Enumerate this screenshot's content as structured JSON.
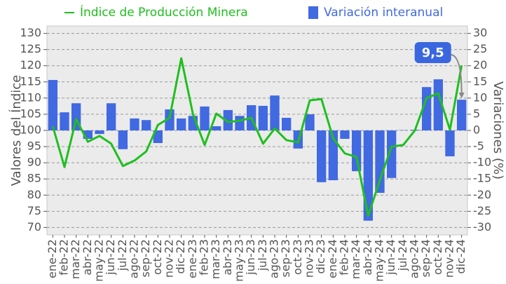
{
  "chart_data": {
    "type": "bar_line",
    "legend": "top",
    "grid": true,
    "ylabel": "Valores del Índice",
    "y2label": "Variaciones (%)",
    "categories": [
      "ene-22",
      "feb-22",
      "mar-22",
      "abr-22",
      "may-22",
      "jun-22",
      "jul-22",
      "ago-22",
      "sep-22",
      "oct-22",
      "nov-22",
      "dic-22",
      "ene-23",
      "feb-23",
      "mar-23",
      "abr-23",
      "may-23",
      "jun-23",
      "jul-23",
      "ago-23",
      "sep-23",
      "oct-23",
      "nov-23",
      "dic-23",
      "ene-24",
      "feb-24",
      "mar-24",
      "abr-24",
      "may-24",
      "jun-24",
      "jul-24",
      "ago-24",
      "sep-24",
      "oct-24",
      "nov-24",
      "dic-24"
    ],
    "series": [
      {
        "name": "Índice de Producción Minera",
        "type": "line",
        "color": "#1fbf1f",
        "axis": "y",
        "values": [
          101.3,
          88.7,
          103.5,
          96.5,
          98.3,
          95.9,
          89.0,
          90.7,
          93.5,
          101.7,
          103.9,
          122.3,
          105.0,
          95.5,
          105.2,
          102.6,
          103.0,
          103.9,
          95.9,
          100.6,
          97.0,
          96.3,
          109.3,
          109.7,
          97.6,
          92.9,
          91.8,
          73.6,
          84.6,
          95.0,
          95.5,
          100.0,
          110.0,
          111.5,
          100.2,
          120.1
        ]
      },
      {
        "name": "Variación interanual",
        "type": "bar",
        "color": "#4169e1",
        "axis": "y2",
        "values": [
          15.6,
          5.6,
          8.4,
          -2.6,
          -1.1,
          8.4,
          -5.8,
          3.7,
          3.2,
          -3.9,
          6.5,
          3.7,
          4.5,
          7.4,
          1.3,
          6.3,
          4.5,
          7.8,
          7.6,
          10.8,
          3.9,
          -5.6,
          5.0,
          -16.0,
          -15.4,
          -2.6,
          -12.6,
          -27.9,
          -19.3,
          -14.7,
          0.1,
          0.2,
          13.4,
          15.8,
          -8.0,
          9.5
        ]
      }
    ],
    "annotation": {
      "text": "9,5",
      "series": 1,
      "index": 35
    },
    "ylim": [
      67.7,
      132.3
    ],
    "yticks": [
      70,
      75,
      80,
      85,
      90,
      95,
      100,
      105,
      110,
      115,
      120,
      125,
      130
    ],
    "y2lim": [
      -32.3,
      32.3
    ],
    "y2ticks": [
      -30,
      -25,
      -20,
      -15,
      -10,
      -5,
      0,
      5,
      10,
      15,
      20,
      25,
      30
    ]
  }
}
